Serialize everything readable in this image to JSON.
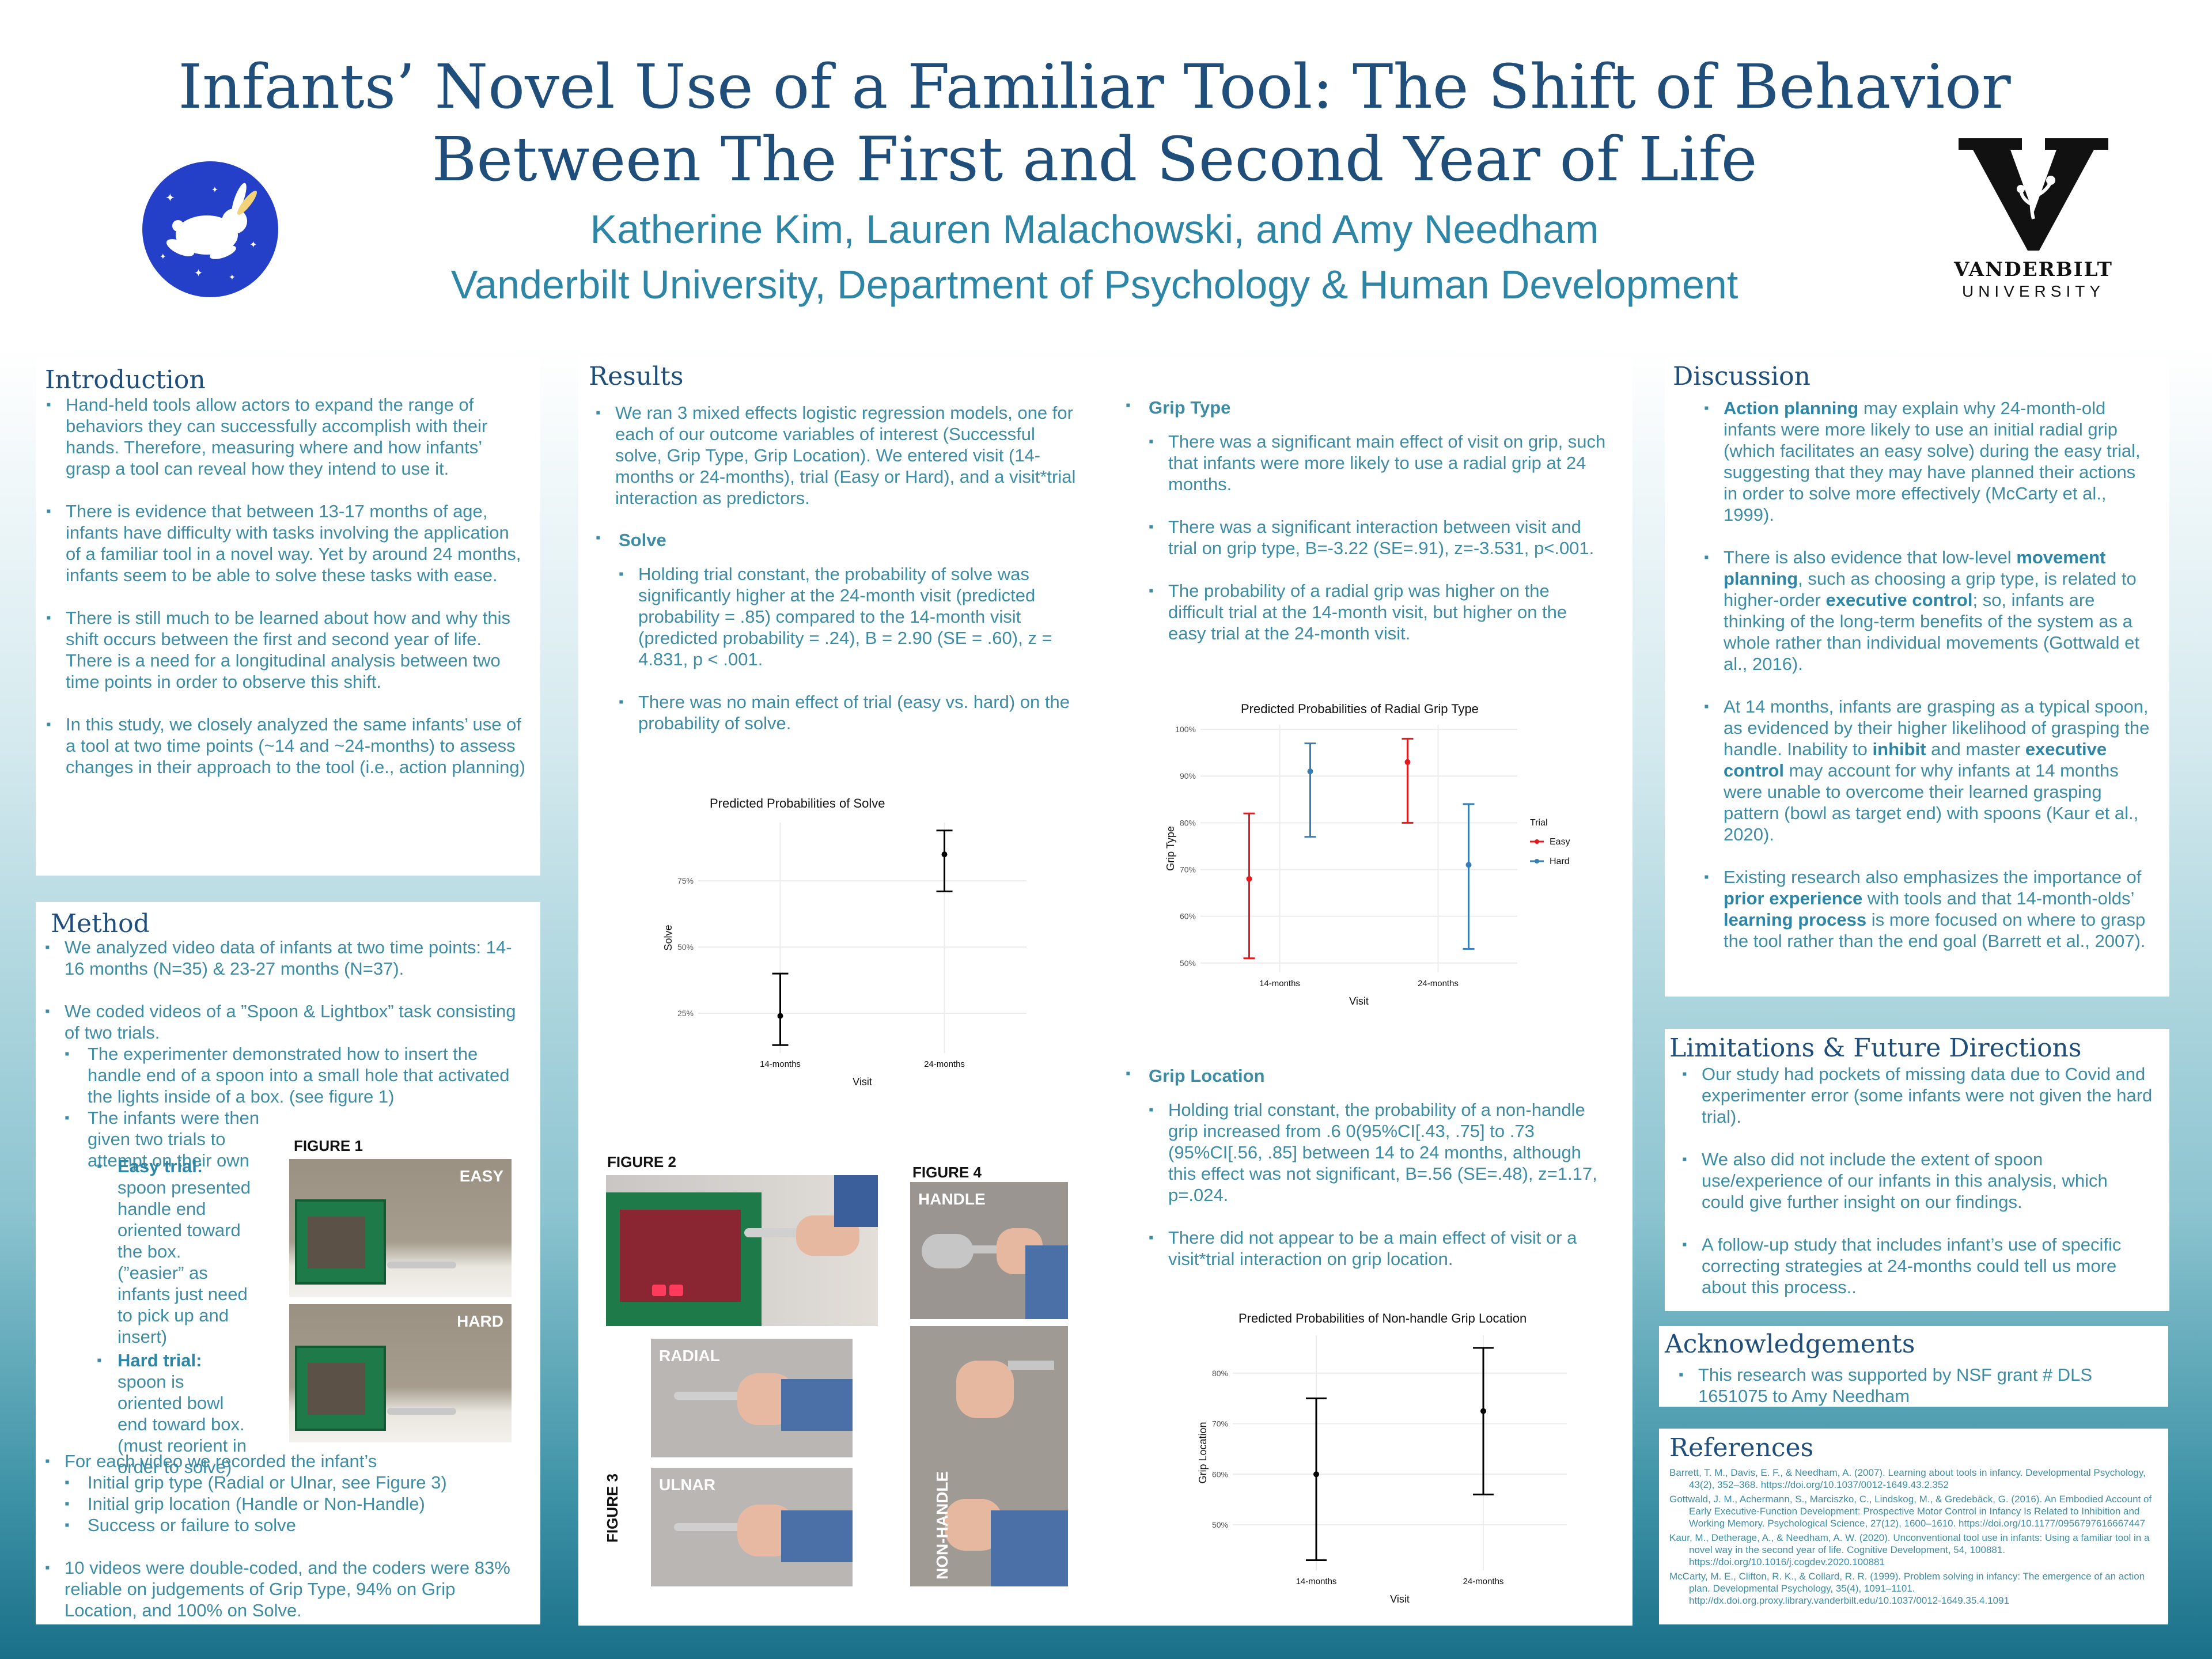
{
  "header": {
    "title_line1": "Infants’ Novel Use of a Familiar Tool: The Shift of Behavior",
    "title_line2": "Between The First and Second Year of Life",
    "authors": "Katherine Kim, Lauren Malachowski, and Amy Needham",
    "affiliation": "Vanderbilt University, Department of Psychology & Human Development",
    "vu_name": "VANDERBILT",
    "vu_sub": "UNIVERSITY"
  },
  "introduction": {
    "title": "Introduction",
    "items": [
      "Hand-held tools allow actors to expand the range of behaviors they can successfully accomplish with their hands. Therefore, measuring where and how infants’ grasp a tool can reveal how they intend to use it.",
      "There is evidence that between 13-17 months of age, infants have difficulty with tasks involving the application of a familiar tool in a novel way. Yet by around 24 months, infants seem to be able to solve these tasks with ease.",
      "There is still much to be learned about how and why this shift occurs between the first and second year of life. There is a need for a longitudinal analysis between two time points in order to observe this shift.",
      "In this study, we closely analyzed the same infants’ use of a tool at two time points (~14 and ~24-months) to assess changes in their approach to the tool (i.e., action planning)"
    ]
  },
  "method": {
    "title": "Method",
    "item1": "We analyzed video data of infants at two time points: 14-16 months (N=35) & 23-27 months (N=37).",
    "item2": "We coded videos of a  ”Spoon & Lightbox” task consisting of two trials.",
    "sub1": "The experimenter demonstrated how to insert the handle end of a spoon into a small hole that activated the lights inside of a box. (see figure 1)",
    "sub2": "The infants were then given two trials to attempt on their own",
    "easy_label": "Easy trial:",
    "easy_text": " spoon presented handle end oriented toward the box.  (”easier” as infants just need to pick up and insert)",
    "hard_label": "Hard trial:",
    "hard_text": " spoon is  oriented bowl end toward box. (must reorient in order to solve)",
    "item3": "For each video we recorded the infant’s",
    "rec1": "Initial grip type (Radial or Ulnar, see Figure 3)",
    "rec2": "Initial grip location (Handle or Non-Handle)",
    "rec3": "Success or failure to solve",
    "item4": "10 videos were double-coded, and the coders were 83% reliable on judgements of Grip Type, 94% on Grip Location, and 100% on Solve.",
    "fig1": "FIGURE 1",
    "easy_tag": "EASY",
    "hard_tag": "HARD"
  },
  "results": {
    "title": "Results",
    "intro": "We ran 3 mixed effects logistic regression models, one for each of our outcome variables of interest (Successful solve, Grip Type, Grip Location). We entered visit (14-months or 24-months), trial (Easy or Hard), and a visit*trial interaction as predictors.",
    "solve_head": "Solve",
    "solve1": "Holding trial constant, the probability of solve was significantly higher at the 24-month visit (predicted probability = .85) compared to the 14-month visit (predicted probability = .24), B = 2.90 (SE = .60), z = 4.831, p < .001.",
    "solve2": "There was no main effect of trial (easy vs. hard) on the probability of solve.",
    "grip_head": "Grip Type",
    "grip1": "There was a significant main effect of visit on grip, such that infants were more likely to use a radial grip at 24 months.",
    "grip2": "There was a significant interaction between visit and trial on grip type, B=-3.22 (SE=.91), z=-3.531, p<.001.",
    "grip3": "The probability of a radial grip was higher on the difficult trial at the 14-month visit, but higher on the easy trial at the 24-month visit.",
    "loc_head": "Grip Location",
    "loc1": "Holding trial constant, the probability of a non-handle grip increased from .6 0(95%CI[.43, .75] to .73 (95%CI[.56, .85] between 14 to 24 months, although this effect was not significant, B=.56 (SE=.48), z=1.17, p=.024.",
    "loc2": "There did not appear to be a main effect of visit or a visit*trial interaction on grip location.",
    "fig2": "FIGURE 2",
    "fig3": "FIGURE 3",
    "fig4": "FIGURE 4",
    "radial": "RADIAL",
    "ulnar": "ULNAR",
    "handle": "HANDLE",
    "nonhandle": "NON-HANDLE"
  },
  "discussion": {
    "title": "Discussion",
    "d1a": "Action planning",
    "d1b": " may explain why 24-month-old infants were more likely to use an initial radial grip (which facilitates an easy solve) during the easy trial, suggesting that they may have planned their actions in order to solve more effectively (McCarty et al., 1999).",
    "d2a": "There is also evidence that low-level ",
    "d2b": "movement planning",
    "d2c": ", such as choosing a grip type, is related to higher-order ",
    "d2d": "executive control",
    "d2e": "; so, infants are thinking of the long-term benefits of the system as a whole rather than individual movements (Gottwald et al., 2016).",
    "d3a": "At 14 months, infants are grasping as a typical spoon, as evidenced by their higher likelihood of grasping the handle. Inability to ",
    "d3b": "inhibit",
    "d3c": " and master ",
    "d3d": "executive control",
    "d3e": " may account for why infants at 14 months were unable to overcome their learned grasping pattern (bowl as  target end) with spoons (Kaur et al., 2020).",
    "d4a": "Existing research also emphasizes the importance of ",
    "d4b": "prior experience",
    "d4c": " with tools and that 14-month-olds’ ",
    "d4d": "learning process",
    "d4e": " is more focused on where to grasp the tool rather than the end goal (Barrett et al., 2007)."
  },
  "limitations": {
    "title": "Limitations & Future Directions",
    "items": [
      "Our study had pockets of missing data due to Covid and experimenter error (some infants were not given the hard trial).",
      "We also did not include the extent of spoon use/experience of our infants in this analysis, which could give further insight on our findings.",
      "A follow-up study that includes infant’s use of specific correcting strategies at 24-months could tell us more about this process.."
    ]
  },
  "acknowledgements": {
    "title": "Acknowledgements",
    "text": "This research was supported by NSF grant # DLS 1651075 to Amy Needham"
  },
  "references": {
    "title": "References",
    "items": [
      "Barrett, T. M., Davis, E. F., & Needham, A. (2007). Learning about tools in infancy. Developmental Psychology, 43(2), 352–368. https://doi.org/10.1037/0012-1649.43.2.352",
      "Gottwald, J. M., Achermann, S., Marciszko, C., Lindskog, M., & Gredebäck, G. (2016). An Embodied Account of Early Executive-Function Development: Prospective Motor Control in Infancy Is Related to Inhibition and Working Memory. Psychological Science, 27(12), 1600–1610. https://doi.org/10.1177/0956797616667447",
      "Kaur, M., Detherage, A., & Needham, A. W. (2020). Unconventional tool use in infants: Using a familiar tool in a novel way in the second year of life. Cognitive Development, 54, 100881. https://doi.org/10.1016/j.cogdev.2020.100881",
      "McCarty, M. E., Clifton, R. K., & Collard, R. R. (1999). Problem solving in infancy: The emergence of an action plan. Developmental Psychology, 35(4), 1091–1101. http://dx.doi.org.proxy.library.vanderbilt.edu/10.1037/0012-1649.35.4.1091"
    ]
  },
  "chart_data": [
    {
      "type": "scatter",
      "title": "Predicted Probabilities of Solve",
      "xlabel": "Visit",
      "ylabel": "Solve",
      "categories": [
        "14-months",
        "24-months"
      ],
      "ylim": [
        0.1,
        0.97
      ],
      "yticks": [
        0.25,
        0.5,
        0.75
      ],
      "ytick_labels": [
        "25%",
        "50%",
        "75%"
      ],
      "series": [
        {
          "values": [
            0.24,
            0.85
          ],
          "lower": [
            0.13,
            0.71
          ],
          "upper": [
            0.4,
            0.94
          ],
          "color": "#000000"
        }
      ]
    },
    {
      "type": "scatter",
      "title": "Predicted Probabilities of Radial Grip Type",
      "xlabel": "Visit",
      "ylabel": "Grip Type",
      "categories": [
        "14-months",
        "24-months"
      ],
      "ylim": [
        0.48,
        1.01
      ],
      "yticks": [
        0.5,
        0.6,
        0.7,
        0.8,
        0.9,
        1.0
      ],
      "ytick_labels": [
        "50%",
        "60%",
        "70%",
        "80%",
        "90%",
        "100%"
      ],
      "legend_title": "Trial",
      "legend_position": "right",
      "series": [
        {
          "name": "Easy",
          "values": [
            0.68,
            0.93
          ],
          "lower": [
            0.51,
            0.8
          ],
          "upper": [
            0.82,
            0.98
          ],
          "color": "#e41a1c"
        },
        {
          "name": "Hard",
          "values": [
            0.91,
            0.71
          ],
          "lower": [
            0.77,
            0.53
          ],
          "upper": [
            0.97,
            0.84
          ],
          "color": "#377eb8"
        }
      ]
    },
    {
      "type": "scatter",
      "title": "Predicted Probabilities of Non-handle Grip Location",
      "xlabel": "Visit",
      "ylabel": "Grip Location",
      "categories": [
        "14-months",
        "24-months"
      ],
      "ylim": [
        0.41,
        0.875
      ],
      "yticks": [
        0.5,
        0.6,
        0.7,
        0.8
      ],
      "ytick_labels": [
        "50%",
        "60%",
        "70%",
        "80%"
      ],
      "series": [
        {
          "values": [
            0.6,
            0.725
          ],
          "lower": [
            0.43,
            0.56
          ],
          "upper": [
            0.75,
            0.85
          ],
          "color": "#000000"
        }
      ]
    }
  ]
}
